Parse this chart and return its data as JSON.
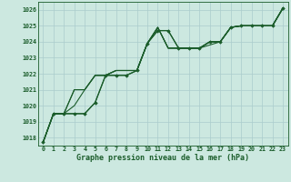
{
  "background_color": "#cce8e0",
  "grid_color": "#aacccc",
  "line_color": "#1a5c2a",
  "title": "Graphe pression niveau de la mer (hPa)",
  "xlim": [
    -0.5,
    23.5
  ],
  "ylim": [
    1017.5,
    1026.5
  ],
  "yticks": [
    1018,
    1019,
    1020,
    1021,
    1022,
    1023,
    1024,
    1025,
    1026
  ],
  "xticks": [
    0,
    1,
    2,
    3,
    4,
    5,
    6,
    7,
    8,
    9,
    10,
    11,
    12,
    13,
    14,
    15,
    16,
    17,
    18,
    19,
    20,
    21,
    22,
    23
  ],
  "series": [
    [
      1017.7,
      1019.5,
      1019.5,
      1019.5,
      1019.5,
      1020.2,
      1021.9,
      1021.9,
      1021.9,
      1022.2,
      1023.9,
      1024.7,
      1024.7,
      1023.6,
      1023.6,
      1023.6,
      1024.0,
      1024.0,
      1024.9,
      1025.0,
      1025.0,
      1025.0,
      1025.0,
      1026.1
    ],
    [
      1017.7,
      1019.5,
      1019.5,
      1021.0,
      1021.0,
      1021.9,
      1021.9,
      1022.2,
      1022.2,
      1022.2,
      1023.9,
      1024.9,
      1023.6,
      1023.6,
      1023.6,
      1023.6,
      1023.8,
      1024.0,
      1024.9,
      1025.0,
      1025.0,
      1025.0,
      1025.0,
      1026.1
    ],
    [
      1017.7,
      1019.5,
      1019.5,
      1021.0,
      1021.0,
      1021.9,
      1021.9,
      1022.2,
      1022.2,
      1022.2,
      1023.9,
      1024.9,
      1023.6,
      1023.6,
      1023.6,
      1023.6,
      1024.0,
      1024.0,
      1024.9,
      1025.0,
      1025.0,
      1025.0,
      1025.0,
      1026.1
    ],
    [
      1017.7,
      1019.5,
      1019.5,
      1020.0,
      1021.0,
      1021.9,
      1021.9,
      1022.2,
      1022.2,
      1022.2,
      1023.9,
      1024.9,
      1023.6,
      1023.6,
      1023.6,
      1023.6,
      1024.0,
      1024.0,
      1024.9,
      1025.0,
      1025.0,
      1025.0,
      1025.0,
      1026.1
    ]
  ],
  "marked_series": [
    [
      1017.7,
      1019.5,
      1019.5,
      1019.5,
      1019.5,
      1020.2,
      1021.9,
      1021.9,
      1021.9,
      1022.2,
      1023.9,
      1024.7,
      1024.7,
      1023.6,
      1023.6,
      1023.6,
      1024.0,
      1024.0,
      1024.9,
      1025.0,
      1025.0,
      1025.0,
      1025.0,
      1026.1
    ]
  ]
}
